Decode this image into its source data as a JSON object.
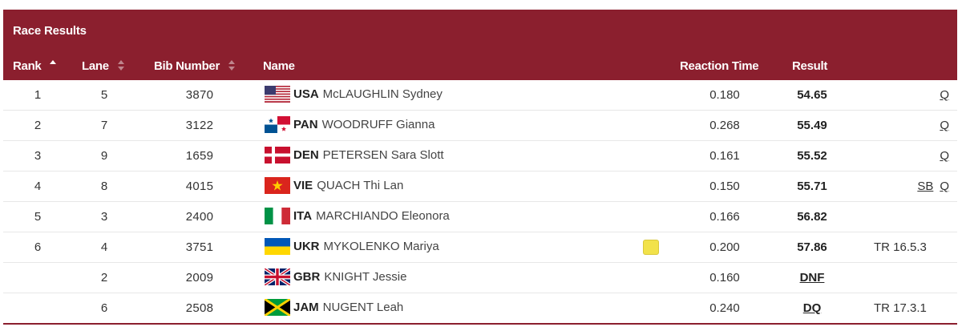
{
  "table": {
    "title": "Race Results",
    "headers": {
      "rank": "Rank",
      "lane": "Lane",
      "bib": "Bib Number",
      "name": "Name",
      "reaction": "Reaction Time",
      "result": "Result"
    },
    "rows": [
      {
        "rank": "1",
        "lane": "5",
        "bib": "3870",
        "noc": "USA",
        "athlete": "McLAUGHLIN Sydney",
        "flag": "usa-flag-icon",
        "reaction": "0.180",
        "result": "54.65",
        "note1": "",
        "note2": "Q",
        "card": false
      },
      {
        "rank": "2",
        "lane": "7",
        "bib": "3122",
        "noc": "PAN",
        "athlete": "WOODRUFF Gianna",
        "flag": "pan-flag-icon",
        "reaction": "0.268",
        "result": "55.49",
        "note1": "",
        "note2": "Q",
        "card": false
      },
      {
        "rank": "3",
        "lane": "9",
        "bib": "1659",
        "noc": "DEN",
        "athlete": "PETERSEN Sara Slott",
        "flag": "den-flag-icon",
        "reaction": "0.161",
        "result": "55.52",
        "note1": "",
        "note2": "Q",
        "card": false
      },
      {
        "rank": "4",
        "lane": "8",
        "bib": "4015",
        "noc": "VIE",
        "athlete": "QUACH Thi Lan",
        "flag": "vie-flag-icon",
        "reaction": "0.150",
        "result": "55.71",
        "note1": "SB",
        "note2": "Q",
        "card": false
      },
      {
        "rank": "5",
        "lane": "3",
        "bib": "2400",
        "noc": "ITA",
        "athlete": "MARCHIANDO Eleonora",
        "flag": "ita-flag-icon",
        "reaction": "0.166",
        "result": "56.82",
        "note1": "",
        "note2": "",
        "card": false
      },
      {
        "rank": "6",
        "lane": "4",
        "bib": "3751",
        "noc": "UKR",
        "athlete": "MYKOLENKO Mariya",
        "flag": "ukr-flag-icon",
        "reaction": "0.200",
        "result": "57.86",
        "note1": "TR 16.5.3",
        "note2": "",
        "card": true
      },
      {
        "rank": "",
        "lane": "2",
        "bib": "2009",
        "noc": "GBR",
        "athlete": "KNIGHT Jessie",
        "flag": "gbr-flag-icon",
        "reaction": "0.160",
        "result": "DNF",
        "note1": "",
        "note2": "",
        "card": false
      },
      {
        "rank": "",
        "lane": "6",
        "bib": "2508",
        "noc": "JAM",
        "athlete": "NUGENT Leah",
        "flag": "jam-flag-icon",
        "reaction": "0.240",
        "result": "DQ",
        "note1": "TR 17.3.1",
        "note2": "",
        "card": false
      }
    ]
  },
  "colors": {
    "header_bg": "#8b1f2e",
    "yellow_card": "#f2e24a"
  }
}
